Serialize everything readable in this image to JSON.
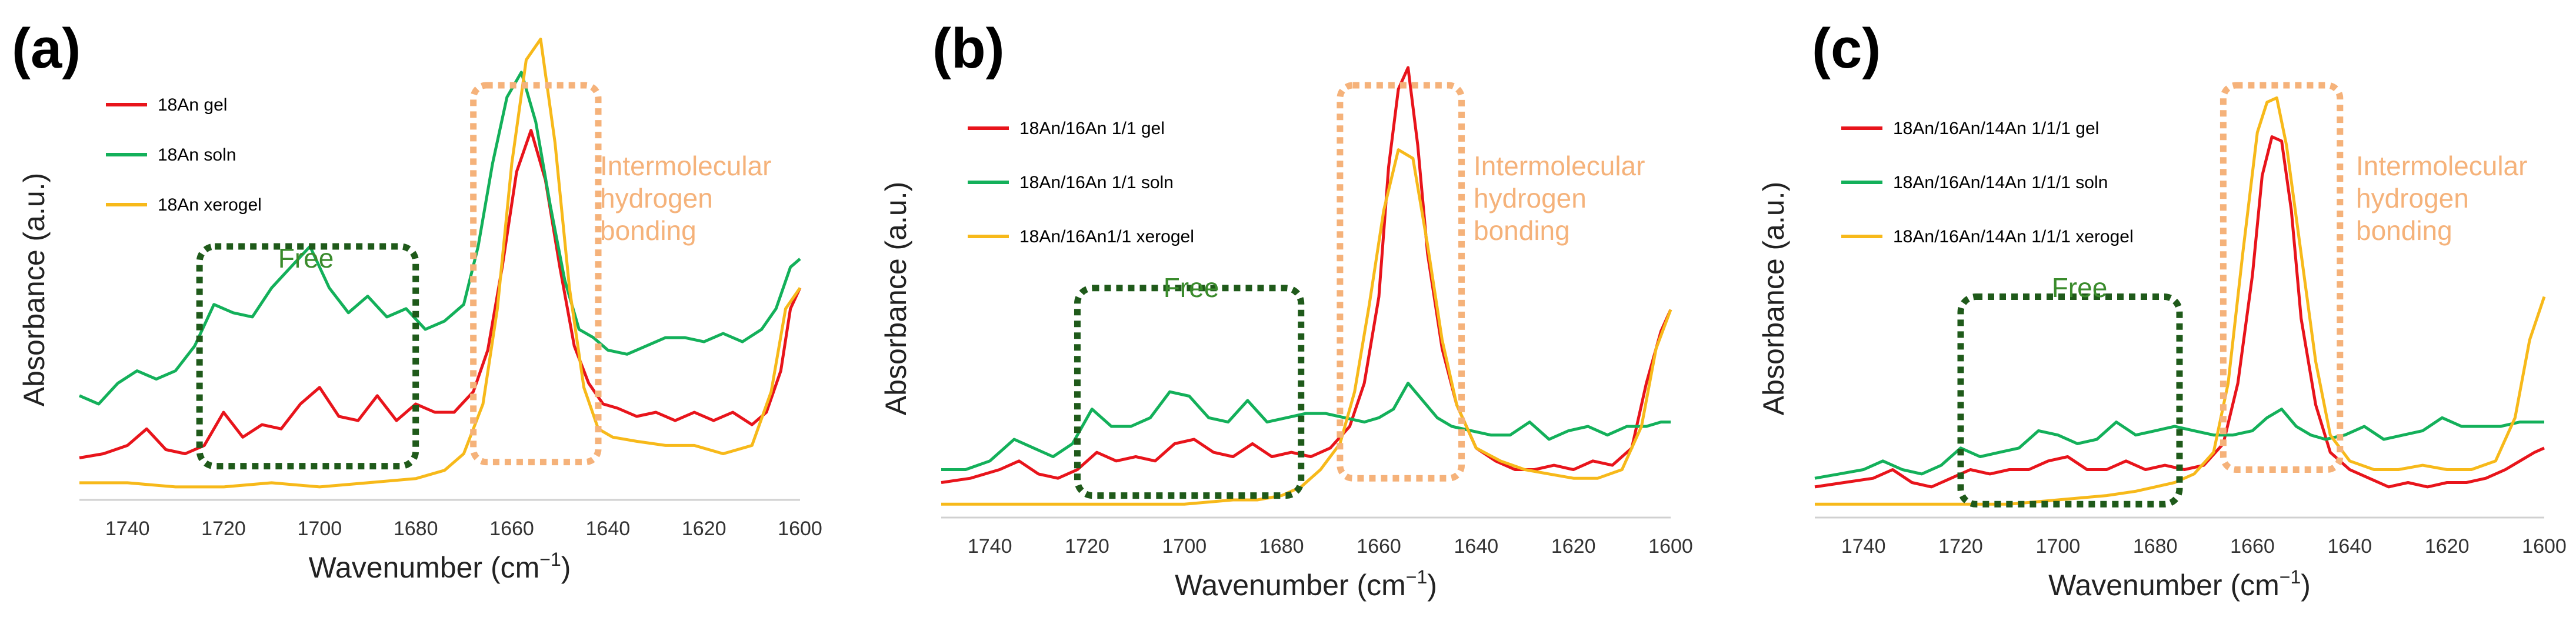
{
  "figure_labels": [
    "(a)",
    "(b)",
    "(c)"
  ],
  "colors": {
    "gel": "#e8141b",
    "soln": "#13b05a",
    "xerogel": "#f7b91a",
    "free_box": "#1f5a1a",
    "hbond_box": "#f5b27a",
    "free_text": "#3a8b2c",
    "hbond_text": "#f5b27a"
  },
  "chart_data": [
    {
      "type": "line",
      "panel": "(a)",
      "xlabel_main": "Wavenumber (cm",
      "xlabel_sup": "−1",
      "xlabel_end": ")",
      "ylabel": "Absorbance (a.u.)",
      "xlim": [
        1750,
        1600
      ],
      "ylim": [
        0,
        1
      ],
      "x_ticks": [
        "1740",
        "1720",
        "1700",
        "1680",
        "1660",
        "1640",
        "1620",
        "1600"
      ],
      "x_tick_values": [
        1740,
        1720,
        1700,
        1680,
        1660,
        1640,
        1620,
        1600
      ],
      "annotations": {
        "free_label": "Free",
        "free_region": [
          1725,
          1680
        ],
        "free_range": [
          0.07,
          0.6
        ],
        "hbond_label": [
          "Intermolecular",
          "hydrogen",
          "bonding"
        ],
        "hbond_region": [
          1668,
          1642
        ],
        "hbond_range": [
          0.08,
          1.0
        ]
      },
      "series": [
        {
          "name": "18An gel",
          "key": "gel",
          "x": [
            1750,
            1745,
            1740,
            1736,
            1732,
            1728,
            1724,
            1720,
            1716,
            1712,
            1708,
            1704,
            1700,
            1696,
            1692,
            1688,
            1684,
            1680,
            1676,
            1672,
            1668,
            1665,
            1662,
            1659,
            1656,
            1653,
            1650,
            1647,
            1644,
            1641,
            1638,
            1634,
            1630,
            1626,
            1622,
            1618,
            1614,
            1610,
            1607,
            1604,
            1602,
            1600
          ],
          "y": [
            0.09,
            0.1,
            0.12,
            0.16,
            0.11,
            0.1,
            0.12,
            0.2,
            0.14,
            0.17,
            0.16,
            0.22,
            0.26,
            0.19,
            0.18,
            0.24,
            0.18,
            0.22,
            0.2,
            0.2,
            0.25,
            0.35,
            0.55,
            0.78,
            0.88,
            0.76,
            0.55,
            0.36,
            0.27,
            0.22,
            0.21,
            0.19,
            0.2,
            0.18,
            0.2,
            0.18,
            0.2,
            0.17,
            0.2,
            0.3,
            0.45,
            0.5
          ]
        },
        {
          "name": "18An soln",
          "key": "soln",
          "x": [
            1750,
            1746,
            1742,
            1738,
            1734,
            1730,
            1726,
            1722,
            1718,
            1714,
            1710,
            1706,
            1702,
            1698,
            1694,
            1690,
            1686,
            1682,
            1678,
            1674,
            1670,
            1667,
            1664,
            1661,
            1658,
            1655,
            1652,
            1649,
            1646,
            1643,
            1640,
            1636,
            1632,
            1628,
            1624,
            1620,
            1616,
            1612,
            1608,
            1605,
            1602,
            1600
          ],
          "y": [
            0.24,
            0.22,
            0.27,
            0.3,
            0.28,
            0.3,
            0.36,
            0.46,
            0.44,
            0.43,
            0.5,
            0.55,
            0.6,
            0.5,
            0.44,
            0.48,
            0.43,
            0.45,
            0.4,
            0.42,
            0.46,
            0.6,
            0.8,
            0.96,
            1.02,
            0.9,
            0.7,
            0.52,
            0.4,
            0.38,
            0.35,
            0.34,
            0.36,
            0.38,
            0.38,
            0.37,
            0.39,
            0.37,
            0.4,
            0.45,
            0.55,
            0.57
          ]
        },
        {
          "name": "18An xerogel",
          "key": "xerogel",
          "x": [
            1750,
            1740,
            1730,
            1720,
            1710,
            1700,
            1690,
            1680,
            1674,
            1670,
            1666,
            1663,
            1660,
            1657,
            1654,
            1651,
            1648,
            1645,
            1642,
            1639,
            1634,
            1628,
            1622,
            1616,
            1610,
            1606,
            1603,
            1600
          ],
          "y": [
            0.03,
            0.03,
            0.02,
            0.02,
            0.03,
            0.02,
            0.03,
            0.04,
            0.06,
            0.1,
            0.22,
            0.45,
            0.8,
            1.05,
            1.1,
            0.85,
            0.5,
            0.26,
            0.16,
            0.14,
            0.13,
            0.12,
            0.12,
            0.1,
            0.12,
            0.25,
            0.45,
            0.5
          ]
        }
      ]
    },
    {
      "type": "line",
      "panel": "(b)",
      "xlabel_main": "Wavenumber (cm",
      "xlabel_sup": "−1",
      "xlabel_end": ")",
      "ylabel": "Absorbance (a.u.)",
      "xlim": [
        1750,
        1600
      ],
      "ylim": [
        0,
        1
      ],
      "x_ticks": [
        "1740",
        "1720",
        "1700",
        "1680",
        "1660",
        "1640",
        "1620",
        "1600"
      ],
      "x_tick_values": [
        1740,
        1720,
        1700,
        1680,
        1660,
        1640,
        1620,
        1600
      ],
      "annotations": {
        "free_label": "Free",
        "free_region": [
          1722,
          1676
        ],
        "free_range": [
          0.04,
          0.52
        ],
        "hbond_label": [
          "Intermolecular",
          "hydrogen",
          "bonding"
        ],
        "hbond_region": [
          1668,
          1643
        ],
        "hbond_range": [
          0.08,
          1.0
        ]
      },
      "series": [
        {
          "name": "18An/16An 1/1 gel",
          "key": "gel",
          "x": [
            1750,
            1744,
            1738,
            1734,
            1730,
            1726,
            1722,
            1718,
            1714,
            1710,
            1706,
            1702,
            1698,
            1694,
            1690,
            1686,
            1682,
            1678,
            1674,
            1670,
            1666,
            1663,
            1660,
            1658,
            1656,
            1654,
            1652,
            1650,
            1647,
            1644,
            1640,
            1636,
            1632,
            1628,
            1624,
            1620,
            1616,
            1612,
            1608,
            1605,
            1602,
            1600
          ],
          "y": [
            0.07,
            0.08,
            0.1,
            0.12,
            0.09,
            0.08,
            0.1,
            0.14,
            0.12,
            0.13,
            0.12,
            0.16,
            0.17,
            0.14,
            0.13,
            0.16,
            0.13,
            0.14,
            0.13,
            0.15,
            0.2,
            0.3,
            0.5,
            0.8,
            0.98,
            1.03,
            0.85,
            0.6,
            0.38,
            0.25,
            0.15,
            0.12,
            0.1,
            0.1,
            0.11,
            0.1,
            0.12,
            0.11,
            0.15,
            0.3,
            0.42,
            0.47
          ]
        },
        {
          "name": "18An/16An 1/1 soln",
          "key": "soln",
          "x": [
            1750,
            1745,
            1740,
            1735,
            1731,
            1727,
            1723,
            1719,
            1715,
            1711,
            1707,
            1703,
            1699,
            1695,
            1691,
            1687,
            1683,
            1679,
            1675,
            1671,
            1667,
            1663,
            1660,
            1657,
            1654,
            1651,
            1648,
            1645,
            1641,
            1637,
            1633,
            1629,
            1625,
            1621,
            1617,
            1613,
            1609,
            1605,
            1602,
            1600
          ],
          "y": [
            0.1,
            0.1,
            0.12,
            0.17,
            0.15,
            0.13,
            0.16,
            0.24,
            0.2,
            0.2,
            0.22,
            0.28,
            0.27,
            0.22,
            0.21,
            0.26,
            0.21,
            0.22,
            0.23,
            0.23,
            0.22,
            0.21,
            0.22,
            0.24,
            0.3,
            0.26,
            0.22,
            0.2,
            0.19,
            0.18,
            0.18,
            0.21,
            0.17,
            0.19,
            0.2,
            0.18,
            0.2,
            0.2,
            0.21,
            0.21
          ]
        },
        {
          "name": "18An/16An1/1  xerogel",
          "key": "xerogel",
          "x": [
            1750,
            1740,
            1730,
            1720,
            1710,
            1700,
            1690,
            1685,
            1680,
            1676,
            1672,
            1668,
            1665,
            1662,
            1659,
            1656,
            1653,
            1650,
            1647,
            1644,
            1640,
            1635,
            1630,
            1625,
            1620,
            1615,
            1610,
            1606,
            1603,
            1600
          ],
          "y": [
            0.02,
            0.02,
            0.02,
            0.02,
            0.02,
            0.02,
            0.03,
            0.03,
            0.04,
            0.06,
            0.1,
            0.16,
            0.28,
            0.48,
            0.7,
            0.84,
            0.82,
            0.62,
            0.4,
            0.25,
            0.15,
            0.12,
            0.1,
            0.09,
            0.08,
            0.08,
            0.1,
            0.2,
            0.38,
            0.47
          ]
        }
      ]
    },
    {
      "type": "line",
      "panel": "(c)",
      "xlabel_main": "Wavenumber (cm",
      "xlabel_sup": "−1",
      "xlabel_end": ")",
      "ylabel": "Absorbance (a.u.)",
      "xlim": [
        1750,
        1600
      ],
      "ylim": [
        0,
        1
      ],
      "x_ticks": [
        "1740",
        "1720",
        "1700",
        "1680",
        "1660",
        "1640",
        "1620",
        "1600"
      ],
      "x_tick_values": [
        1740,
        1720,
        1700,
        1680,
        1660,
        1640,
        1620,
        1600
      ],
      "annotations": {
        "free_label": "Free",
        "free_region": [
          1720,
          1675
        ],
        "free_range": [
          0.02,
          0.5
        ],
        "hbond_label": [
          "Intermolecular",
          "hydrogen",
          "bonding"
        ],
        "hbond_region": [
          1666,
          1642
        ],
        "hbond_range": [
          0.1,
          1.0
        ]
      },
      "series": [
        {
          "name": "18An/16An/14An 1/1/1 gel",
          "key": "gel",
          "x": [
            1750,
            1744,
            1738,
            1734,
            1730,
            1726,
            1722,
            1718,
            1714,
            1710,
            1706,
            1702,
            1698,
            1694,
            1690,
            1686,
            1682,
            1678,
            1674,
            1670,
            1666,
            1663,
            1660,
            1658,
            1656,
            1654,
            1652,
            1650,
            1647,
            1644,
            1640,
            1636,
            1632,
            1628,
            1624,
            1620,
            1616,
            1612,
            1608,
            1605,
            1602,
            1600
          ],
          "y": [
            0.06,
            0.07,
            0.08,
            0.1,
            0.07,
            0.06,
            0.08,
            0.1,
            0.09,
            0.1,
            0.1,
            0.12,
            0.13,
            0.1,
            0.1,
            0.12,
            0.1,
            0.11,
            0.1,
            0.11,
            0.16,
            0.3,
            0.55,
            0.78,
            0.87,
            0.86,
            0.7,
            0.45,
            0.25,
            0.14,
            0.1,
            0.08,
            0.06,
            0.07,
            0.06,
            0.07,
            0.07,
            0.08,
            0.1,
            0.12,
            0.14,
            0.15
          ]
        },
        {
          "name": "18An/16An/14An 1/1/1 soln",
          "key": "soln",
          "x": [
            1750,
            1745,
            1740,
            1736,
            1732,
            1728,
            1724,
            1720,
            1716,
            1712,
            1708,
            1704,
            1700,
            1696,
            1692,
            1688,
            1684,
            1680,
            1676,
            1672,
            1668,
            1664,
            1660,
            1657,
            1654,
            1651,
            1648,
            1645,
            1641,
            1637,
            1633,
            1629,
            1625,
            1621,
            1617,
            1613,
            1609,
            1605,
            1602,
            1600
          ],
          "y": [
            0.08,
            0.09,
            0.1,
            0.12,
            0.1,
            0.09,
            0.11,
            0.15,
            0.13,
            0.14,
            0.15,
            0.19,
            0.18,
            0.16,
            0.17,
            0.21,
            0.18,
            0.19,
            0.2,
            0.19,
            0.18,
            0.18,
            0.19,
            0.22,
            0.24,
            0.2,
            0.18,
            0.17,
            0.18,
            0.2,
            0.17,
            0.18,
            0.19,
            0.22,
            0.2,
            0.2,
            0.2,
            0.21,
            0.21,
            0.21
          ]
        },
        {
          "name": "18An/16An/14An 1/1/1 xerogel",
          "key": "xerogel",
          "x": [
            1750,
            1740,
            1730,
            1720,
            1710,
            1700,
            1690,
            1684,
            1680,
            1676,
            1672,
            1668,
            1665,
            1662,
            1659,
            1657,
            1655,
            1653,
            1650,
            1647,
            1644,
            1640,
            1635,
            1630,
            1625,
            1620,
            1615,
            1610,
            1606,
            1603,
            1600
          ],
          "y": [
            0.02,
            0.02,
            0.02,
            0.02,
            0.02,
            0.03,
            0.04,
            0.05,
            0.06,
            0.07,
            0.09,
            0.14,
            0.3,
            0.6,
            0.88,
            0.95,
            0.96,
            0.85,
            0.6,
            0.35,
            0.18,
            0.12,
            0.1,
            0.1,
            0.11,
            0.1,
            0.1,
            0.12,
            0.22,
            0.4,
            0.5
          ]
        }
      ]
    }
  ]
}
